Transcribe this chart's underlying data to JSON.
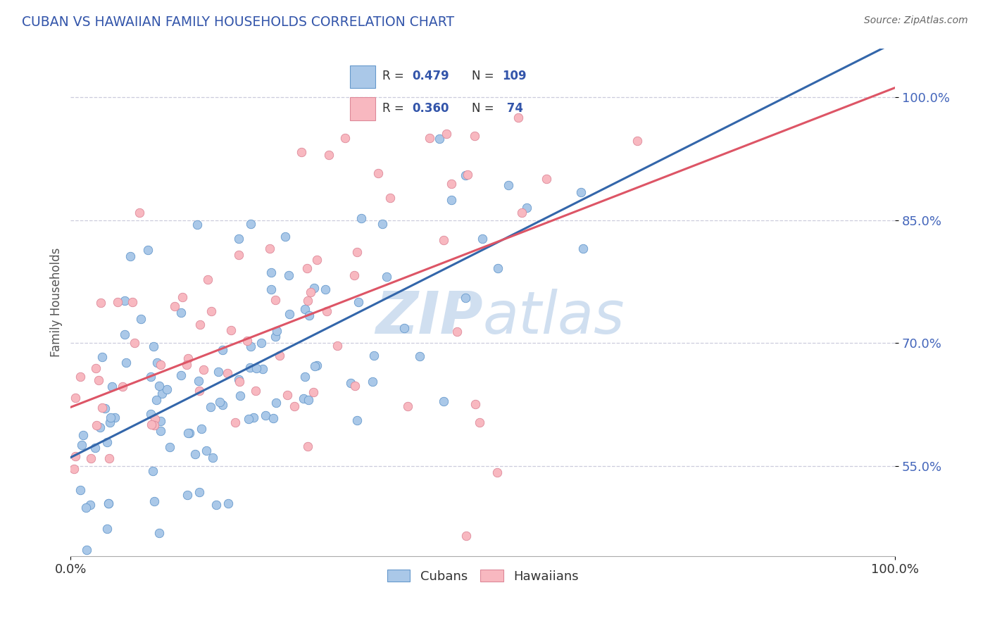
{
  "title": "CUBAN VS HAWAIIAN FAMILY HOUSEHOLDS CORRELATION CHART",
  "source_text": "Source: ZipAtlas.com",
  "ylabel": "Family Households",
  "xlim": [
    0.0,
    1.0
  ],
  "ylim": [
    0.44,
    1.06
  ],
  "yticks": [
    0.55,
    0.7,
    0.85,
    1.0
  ],
  "ytick_labels": [
    "55.0%",
    "70.0%",
    "85.0%",
    "100.0%"
  ],
  "cuban_R": 0.479,
  "cuban_N": 109,
  "hawaiian_R": 0.36,
  "hawaiian_N": 74,
  "blue_fill": "#aac8e8",
  "blue_edge": "#6699cc",
  "pink_fill": "#f8b8c0",
  "pink_edge": "#dd8899",
  "blue_line_color": "#3366aa",
  "pink_line_color": "#dd5566",
  "title_color": "#3355aa",
  "label_color": "#4466bb",
  "source_color": "#666666",
  "watermark_color": "#d0dff0",
  "background_color": "#ffffff",
  "grid_color": "#ccccdd",
  "legend_text_color": "#333333",
  "legend_value_color": "#3355aa"
}
